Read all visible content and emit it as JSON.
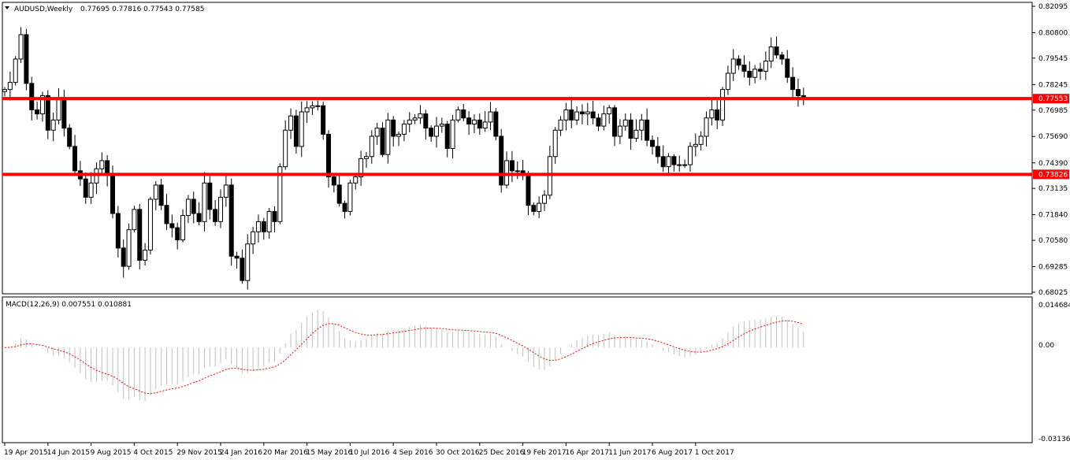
{
  "header": {
    "symbol": "AUDUSD,Weekly",
    "ohlc": "0.77695 0.77816 0.77543 0.77585"
  },
  "macd": {
    "label": "MACD(12,26,9) 0.007551 0.010881",
    "y_ticks": [
      "0.014684",
      "0.00",
      "-0.031362"
    ],
    "ylim": [
      -0.031362,
      0.014684
    ]
  },
  "chart_data": [
    {
      "type": "candlestick",
      "title": "AUDUSD,Weekly",
      "ylim": [
        0.68025,
        0.82095
      ],
      "y_ticks": [
        "0.82095",
        "0.80800",
        "0.79545",
        "0.78245",
        "0.76985",
        "0.75690",
        "0.74390",
        "0.73135",
        "0.71840",
        "0.70580",
        "0.69285",
        "0.68025"
      ],
      "x_ticks": [
        "19 Apr 2015",
        "14 Jun 2015",
        "9 Aug 2015",
        "4 Oct 2015",
        "29 Nov 2015",
        "24 Jan 2016",
        "20 Mar 2016",
        "15 May 2016",
        "10 Jul 2016",
        "4 Sep 2016",
        "30 Oct 2016",
        "25 Dec 2016",
        "19 Feb 2017",
        "16 Apr 2017",
        "11 Jun 2017",
        "6 Aug 2017",
        "1 Oct 2017"
      ],
      "horizontal_lines": [
        {
          "value": 0.77553,
          "label": "0.77553",
          "color": "#ff0000"
        },
        {
          "value": 0.73826,
          "label": "0.73826",
          "color": "#ff0000"
        }
      ],
      "closes": [
        0.78,
        0.7835,
        0.795,
        0.807,
        0.783,
        0.77,
        0.768,
        0.777,
        0.76,
        0.765,
        0.775,
        0.761,
        0.752,
        0.74,
        0.736,
        0.727,
        0.734,
        0.741,
        0.745,
        0.738,
        0.719,
        0.702,
        0.693,
        0.711,
        0.721,
        0.696,
        0.701,
        0.726,
        0.733,
        0.723,
        0.714,
        0.712,
        0.706,
        0.718,
        0.726,
        0.719,
        0.715,
        0.734,
        0.721,
        0.715,
        0.727,
        0.733,
        0.698,
        0.697,
        0.686,
        0.704,
        0.71,
        0.715,
        0.71,
        0.72,
        0.715,
        0.742,
        0.76,
        0.767,
        0.752,
        0.769,
        0.771,
        0.772,
        0.772,
        0.758,
        0.737,
        0.733,
        0.724,
        0.72,
        0.734,
        0.737,
        0.746,
        0.747,
        0.757,
        0.761,
        0.748,
        0.765,
        0.757,
        0.758,
        0.763,
        0.765,
        0.766,
        0.768,
        0.761,
        0.757,
        0.762,
        0.763,
        0.751,
        0.765,
        0.77,
        0.766,
        0.763,
        0.765,
        0.761,
        0.764,
        0.769,
        0.757,
        0.733,
        0.745,
        0.74,
        0.74,
        0.738,
        0.723,
        0.72,
        0.724,
        0.728,
        0.747,
        0.76,
        0.765,
        0.77,
        0.765,
        0.769,
        0.768,
        0.769,
        0.766,
        0.762,
        0.768,
        0.771,
        0.757,
        0.762,
        0.765,
        0.756,
        0.76,
        0.765,
        0.755,
        0.752,
        0.747,
        0.742,
        0.747,
        0.743,
        0.743,
        0.743,
        0.752,
        0.753,
        0.757,
        0.766,
        0.77,
        0.765,
        0.78,
        0.788,
        0.795,
        0.792,
        0.789,
        0.786,
        0.79,
        0.789,
        0.794,
        0.801,
        0.797,
        0.795,
        0.786,
        0.78,
        0.777,
        0.7759
      ]
    },
    {
      "type": "macd",
      "series": [
        {
          "name": "MACD(12,26,9)",
          "style": "histogram",
          "color": "#c0c0c0"
        },
        {
          "name": "Signal",
          "style": "dotted-line",
          "color": "#ff0000"
        }
      ]
    }
  ],
  "colors": {
    "bull_body": "#ffffff",
    "bear_body": "#000000",
    "wick": "#000000",
    "hline": "#ff0000",
    "grid_border": "#000000",
    "hist": "#c0c0c0",
    "signal": "#ff0000"
  }
}
